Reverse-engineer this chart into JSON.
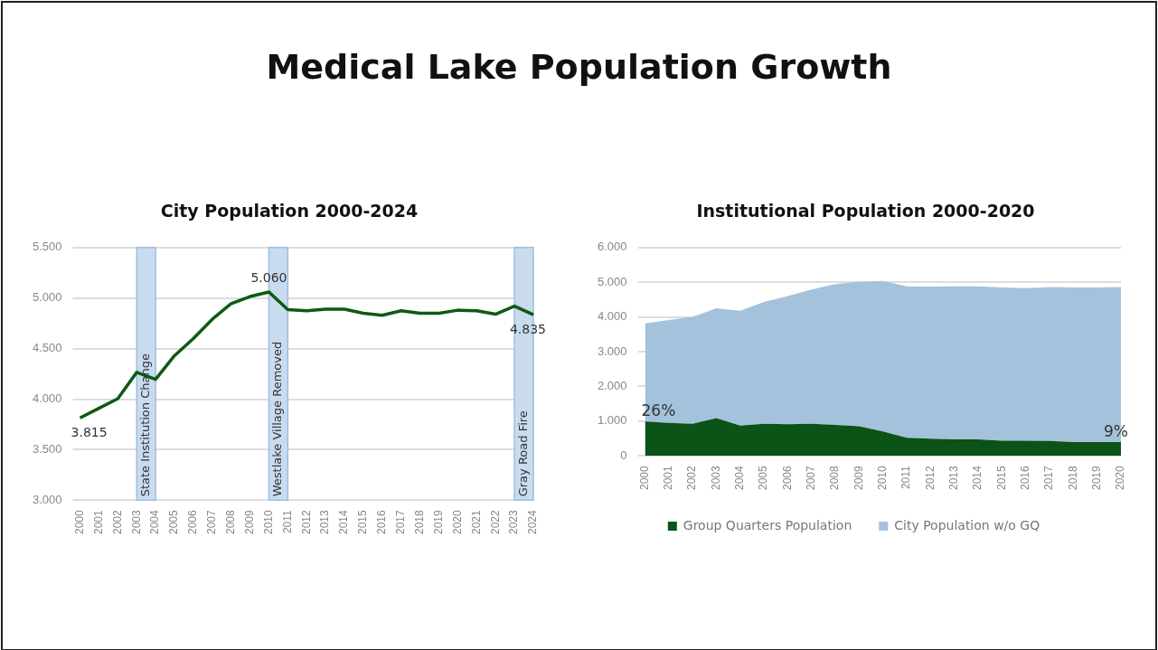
{
  "chart_data": [
    {
      "type": "line",
      "title": "Medical Lake Population Growth",
      "subtitle": "City Population 2000-2024",
      "categories": [
        "2000",
        "2001",
        "2002",
        "2003",
        "2004",
        "2005",
        "2006",
        "2007",
        "2008",
        "2009",
        "2010",
        "2011",
        "2012",
        "2013",
        "2014",
        "2015",
        "2016",
        "2017",
        "2018",
        "2019",
        "2020",
        "2021",
        "2022",
        "2023",
        "2024"
      ],
      "series": [
        {
          "color": "#0e5a14",
          "values": [
            3815,
            3910,
            4005,
            4265,
            4195,
            4430,
            4600,
            4790,
            4945,
            5015,
            5060,
            4885,
            4875,
            4890,
            4890,
            4850,
            4830,
            4875,
            4850,
            4850,
            4880,
            4875,
            4840,
            4920,
            4835
          ],
          "value_labels": [
            "3.815",
            null,
            null,
            null,
            null,
            null,
            null,
            null,
            null,
            null,
            "5.060",
            null,
            null,
            null,
            null,
            null,
            null,
            null,
            null,
            null,
            null,
            null,
            null,
            null,
            "4.835"
          ]
        }
      ],
      "ylim": [
        3000,
        5500
      ],
      "yticks": [
        {
          "value": 3000,
          "label": "3.000"
        },
        {
          "value": 3500,
          "label": "3.500"
        },
        {
          "value": 4000,
          "label": "4.000"
        },
        {
          "value": 4500,
          "label": "4.500"
        },
        {
          "value": 5000,
          "label": "5.000"
        },
        {
          "value": 5500,
          "label": "5.500"
        }
      ],
      "bands": [
        {
          "axis": "x",
          "from": "2003",
          "to": "2004",
          "label": "State Institution Change",
          "color": "#c9dbee"
        },
        {
          "axis": "x",
          "from": "2010",
          "to": "2011",
          "label": "Westlake Village Removed",
          "color": "#c9dbee"
        },
        {
          "axis": "x",
          "from": "2023",
          "to": "2024",
          "label": "Gray Road Fire",
          "color": "#c9dbee"
        }
      ],
      "grid": "y",
      "legend": false
    },
    {
      "type": "area",
      "title": "Institutional Population 2000-2020",
      "stacked": true,
      "categories": [
        "2000",
        "2001",
        "2002",
        "2003",
        "2004",
        "2005",
        "2006",
        "2007",
        "2008",
        "2009",
        "2010",
        "2011",
        "2012",
        "2013",
        "2014",
        "2015",
        "2016",
        "2017",
        "2018",
        "2019",
        "2020"
      ],
      "series": [
        {
          "name": "Group Quarters Population",
          "color": "#0b5316",
          "values": [
            990,
            950,
            925,
            1085,
            875,
            925,
            915,
            925,
            895,
            855,
            705,
            525,
            495,
            475,
            475,
            440,
            440,
            430,
            400,
            400,
            400
          ]
        },
        {
          "name": "City Population w/o GQ",
          "color": "#a4c2dc",
          "values": [
            2825,
            2960,
            3080,
            3165,
            3305,
            3505,
            3685,
            3865,
            4050,
            4155,
            4335,
            4355,
            4380,
            4410,
            4405,
            4410,
            4390,
            4430,
            4450,
            4450,
            4460
          ]
        }
      ],
      "ylim": [
        0,
        6000
      ],
      "yticks": [
        0,
        {
          "value": 1000,
          "label": "1.000"
        },
        {
          "value": 2000,
          "label": "2.000"
        },
        {
          "value": 3000,
          "label": "3.000"
        },
        {
          "value": 4000,
          "label": "4.000"
        },
        {
          "value": 5000,
          "label": "5.000"
        },
        {
          "value": 6000,
          "label": "6.000"
        }
      ],
      "annotations": [
        {
          "text": "26%",
          "x": "2000",
          "y": 990
        },
        {
          "text": "9%",
          "x": "2020",
          "y": 400
        }
      ],
      "grid": "y",
      "legend": "bottom"
    }
  ]
}
